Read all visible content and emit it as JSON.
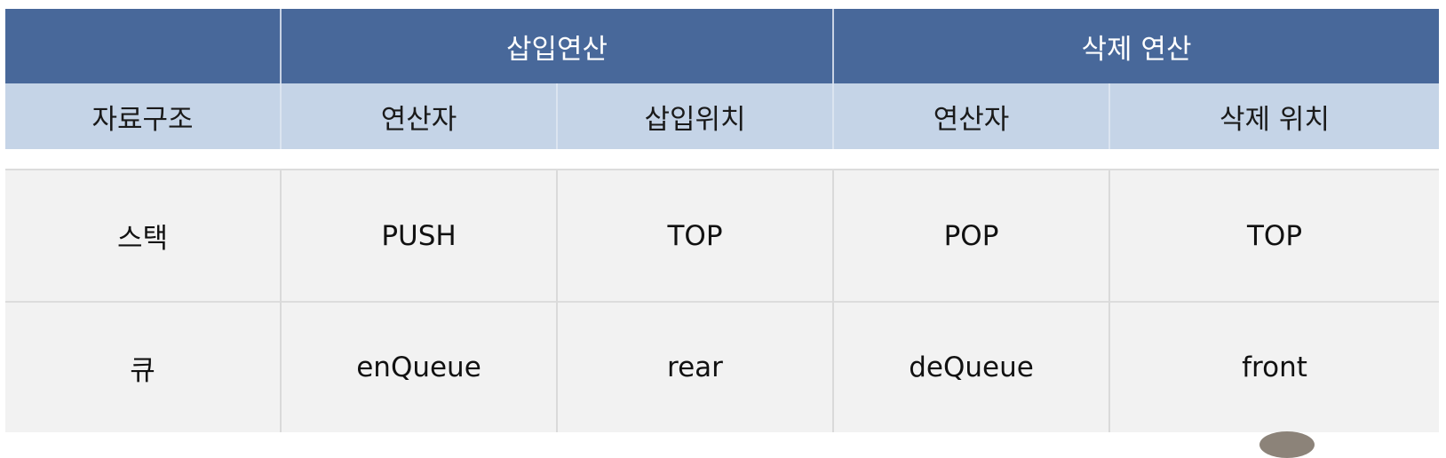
{
  "table": {
    "group_headers": {
      "insert": "삽입연산",
      "delete": "삭제 연산"
    },
    "sub_headers": [
      "자료구조",
      "연산자",
      "삽입위치",
      "연산자",
      "삭제 위치"
    ],
    "rows": [
      [
        "스택",
        "PUSH",
        "TOP",
        "POP",
        "TOP"
      ],
      [
        "큐",
        "enQueue",
        "rear",
        "deQueue",
        "front"
      ]
    ]
  },
  "colors": {
    "header_dark": "#48689a",
    "header_light": "#c5d4e7",
    "cell_bg": "#f2f2f2"
  }
}
